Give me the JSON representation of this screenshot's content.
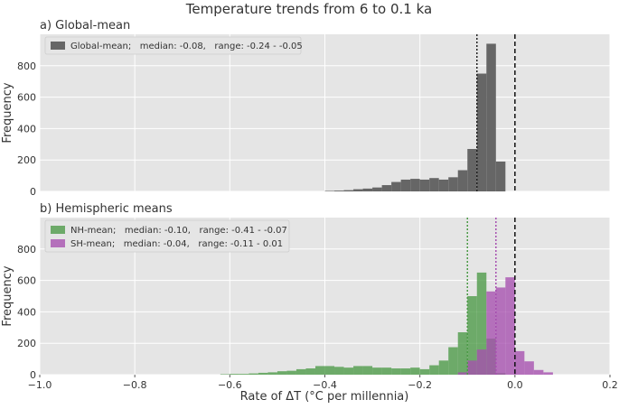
{
  "figure_title": "Temperature trends from 6 to 0.1 ka",
  "chart_data": [
    {
      "type": "histogram",
      "title": "a) Global-mean",
      "ylabel": "Frequency",
      "xlabel": "",
      "xlim": [
        -1.0,
        0.2
      ],
      "ylim": [
        0,
        1000
      ],
      "yticks": [
        0,
        200,
        400,
        600,
        800
      ],
      "bin_width": 0.02,
      "grid": true,
      "legend_position": "top-left",
      "series": [
        {
          "name": "Global-mean;   median: -0.08,   range: -0.24 - -0.05",
          "color": "#666666",
          "opacity": 1.0,
          "bins": [
            [
              -0.4,
              3
            ],
            [
              -0.38,
              5
            ],
            [
              -0.36,
              8
            ],
            [
              -0.34,
              14
            ],
            [
              -0.32,
              18
            ],
            [
              -0.3,
              25
            ],
            [
              -0.28,
              40
            ],
            [
              -0.26,
              60
            ],
            [
              -0.24,
              75
            ],
            [
              -0.22,
              80
            ],
            [
              -0.2,
              75
            ],
            [
              -0.18,
              85
            ],
            [
              -0.16,
              75
            ],
            [
              -0.14,
              90
            ],
            [
              -0.12,
              135
            ],
            [
              -0.1,
              270
            ],
            [
              -0.08,
              750
            ],
            [
              -0.06,
              940
            ],
            [
              -0.04,
              190
            ]
          ],
          "median": -0.08
        }
      ],
      "reference_line": 0.0
    },
    {
      "type": "histogram",
      "title": "b) Hemispheric means",
      "ylabel": "Frequency",
      "xlabel": "Rate of ΔT (°C per millennia)",
      "xlim": [
        -1.0,
        0.2
      ],
      "ylim": [
        0,
        1000
      ],
      "yticks": [
        0,
        200,
        400,
        600,
        800
      ],
      "xticks": [
        "-1.0",
        "-0.8",
        "-0.6",
        "-0.4",
        "-0.2",
        "0.0",
        "0.2"
      ],
      "bin_width": 0.02,
      "grid": true,
      "legend_position": "top-left",
      "series": [
        {
          "name": "NH-mean;   median: -0.10,   range: -0.41 - -0.07",
          "color": "#4c9a46",
          "opacity": 0.78,
          "bins": [
            [
              -0.62,
              3
            ],
            [
              -0.6,
              5
            ],
            [
              -0.58,
              5
            ],
            [
              -0.56,
              8
            ],
            [
              -0.54,
              12
            ],
            [
              -0.52,
              15
            ],
            [
              -0.5,
              22
            ],
            [
              -0.48,
              25
            ],
            [
              -0.46,
              35
            ],
            [
              -0.44,
              40
            ],
            [
              -0.42,
              55
            ],
            [
              -0.4,
              55
            ],
            [
              -0.38,
              50
            ],
            [
              -0.36,
              45
            ],
            [
              -0.34,
              55
            ],
            [
              -0.32,
              55
            ],
            [
              -0.3,
              45
            ],
            [
              -0.28,
              45
            ],
            [
              -0.26,
              40
            ],
            [
              -0.24,
              40
            ],
            [
              -0.22,
              45
            ],
            [
              -0.2,
              35
            ],
            [
              -0.18,
              60
            ],
            [
              -0.16,
              90
            ],
            [
              -0.14,
              175
            ],
            [
              -0.12,
              270
            ],
            [
              -0.1,
              500
            ],
            [
              -0.08,
              650
            ],
            [
              -0.06,
              230
            ],
            [
              -0.04,
              10
            ]
          ],
          "median": -0.1
        },
        {
          "name": "SH-mean;   median: -0.04,   range: -0.11 - 0.01",
          "color": "#a64fb0",
          "opacity": 0.78,
          "bins": [
            [
              -0.12,
              15
            ],
            [
              -0.1,
              90
            ],
            [
              -0.08,
              160
            ],
            [
              -0.06,
              530
            ],
            [
              -0.04,
              555
            ],
            [
              -0.02,
              620
            ],
            [
              0.0,
              150
            ],
            [
              0.02,
              85
            ],
            [
              0.04,
              30
            ],
            [
              0.06,
              15
            ]
          ],
          "median": -0.04
        }
      ],
      "reference_line": 0.0
    }
  ]
}
